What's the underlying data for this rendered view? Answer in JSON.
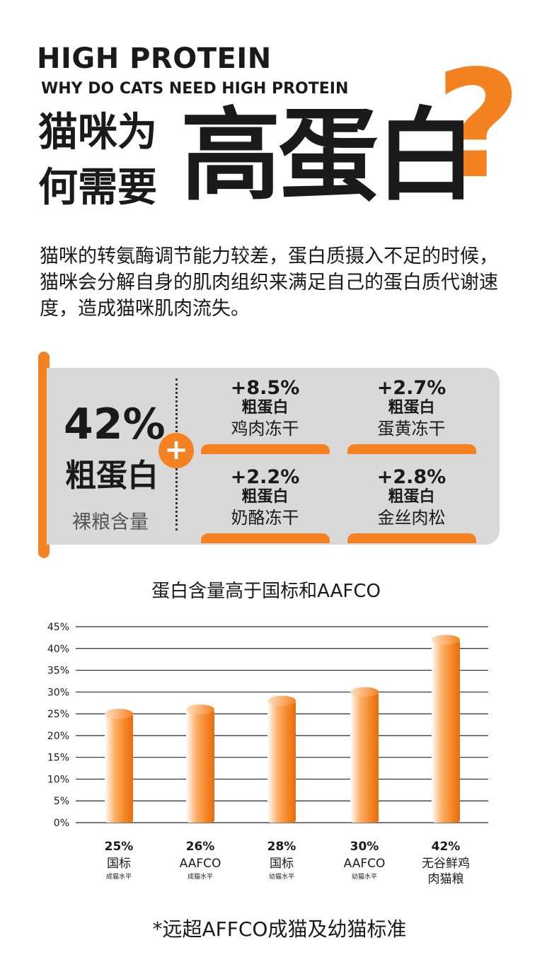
{
  "header": {
    "title": "HIGH PROTEIN",
    "subtitle": "WHY DO CATS NEED HIGH PROTEIN",
    "question_line1": "猫咪为",
    "question_line2": "何需要",
    "big_word": "高蛋白",
    "question_mark": "?",
    "accent_color": "#f58220"
  },
  "intro": "猫咪的转氨酶调节能力较差，蛋白质摄入不足的时候，猫咪会分解自身的肌肉组织来满足自己的蛋白质代谢速度，造成猫咪肌肉流失。",
  "summary": {
    "total_value": "42%",
    "total_label": "粗蛋白",
    "total_caption": "裸粮含量",
    "plus_symbol": "+",
    "items": [
      {
        "value": "+8.5%",
        "label": "粗蛋白",
        "name": "鸡肉冻干"
      },
      {
        "value": "+2.7%",
        "label": "粗蛋白",
        "name": "蛋黄冻干"
      },
      {
        "value": "+2.2%",
        "label": "粗蛋白",
        "name": "奶酪冻干"
      },
      {
        "value": "+2.8%",
        "label": "粗蛋白",
        "name": "金丝肉松"
      }
    ]
  },
  "chart_data": {
    "type": "bar",
    "title": "蛋白含量高于国标和AAFCO",
    "categories": [
      "国标",
      "AAFCO",
      "国标",
      "AAFCO",
      "无谷鲜鸡肉猫粮"
    ],
    "category_lines": [
      [
        "国标"
      ],
      [
        "AAFCO"
      ],
      [
        "国标"
      ],
      [
        "AAFCO"
      ],
      [
        "无谷鲜鸡",
        "肉猫粮"
      ]
    ],
    "sublabels": [
      "成猫水平",
      "成猫水平",
      "幼猫水平",
      "幼猫水平",
      ""
    ],
    "values": [
      25,
      26,
      28,
      30,
      42
    ],
    "value_labels": [
      "25%",
      "26%",
      "28%",
      "30%",
      "42%"
    ],
    "ylim": [
      0,
      45
    ],
    "yticks": [
      0,
      5,
      10,
      15,
      20,
      25,
      30,
      35,
      40,
      45
    ],
    "ytick_suffix": "%",
    "grid": true,
    "bar_color": "#f58220"
  },
  "footnote": "*远超AFFCO成猫及幼猫标准"
}
